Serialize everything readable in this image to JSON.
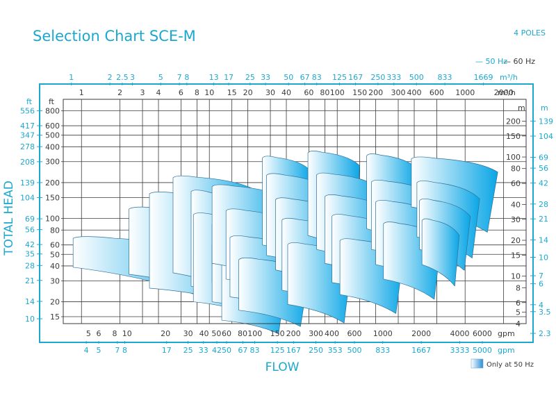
{
  "chart_data": {
    "type": "area",
    "title": "Selection Chart SCE-M",
    "poles": "4 POLES",
    "legend": {
      "hz50": "— 50 Hz",
      "hz60": "— 60 Hz",
      "only50": "Only at 50 Hz"
    },
    "ylabel": "TOTAL HEAD",
    "xlabel": "FLOW",
    "units": {
      "m3h": "m³/h",
      "ft": "ft",
      "m": "m",
      "gpm": "gpm"
    },
    "x_scale": "log",
    "xlim_m3h": [
      0.72,
      3000
    ],
    "y_scale": "log",
    "ylim_ft": [
      13.12,
      1000
    ],
    "grid": true,
    "colors": {
      "accent": "#1ba8cf",
      "curve_light": "#ffffff",
      "curve_dark": "#0aa6e6",
      "grid": "#3a3a3a"
    },
    "x_top_50hz": {
      "labels": [
        "1",
        "2",
        "2.5",
        "3",
        "5",
        "7",
        "8",
        "13",
        "17",
        "25",
        "33",
        "50",
        "67",
        "83",
        "125",
        "167",
        "250",
        "333",
        "500",
        "833",
        "1669"
      ],
      "values": [
        1,
        2,
        2.5,
        3,
        5,
        7,
        8,
        13,
        17,
        25,
        33,
        50,
        67,
        83,
        125,
        167,
        250,
        333,
        500,
        833,
        1669
      ]
    },
    "x_top_60hz": {
      "labels": [
        "1",
        "2",
        "3",
        "4",
        "6",
        "8",
        "10",
        "15",
        "20",
        "30",
        "40",
        "60",
        "80",
        "100",
        "150",
        "200",
        "300",
        "400",
        "600",
        "1000",
        "2000"
      ],
      "values": [
        1,
        2,
        3,
        4,
        6,
        8,
        10,
        15,
        20,
        30,
        40,
        60,
        80,
        100,
        150,
        200,
        300,
        400,
        600,
        1000,
        2000
      ]
    },
    "x_gpm_60hz": {
      "labels": [
        "5",
        "6",
        "8",
        "10",
        "20",
        "30",
        "40",
        "50",
        "60",
        "80",
        "100",
        "150",
        "200",
        "300",
        "400",
        "600",
        "1000",
        "2000",
        "4000",
        "6000"
      ],
      "values": [
        5,
        6,
        8,
        10,
        20,
        30,
        40,
        50,
        60,
        80,
        100,
        150,
        200,
        300,
        400,
        600,
        1000,
        2000,
        4000,
        6000
      ]
    },
    "x_gpm_50hz": {
      "labels": [
        "4",
        "5",
        "7",
        "8",
        "17",
        "25",
        "33",
        "42",
        "50",
        "67",
        "83",
        "125",
        "167",
        "250",
        "353",
        "500",
        "833",
        "1667",
        "3333",
        "5000"
      ],
      "values": [
        4,
        5,
        7,
        8,
        17,
        25,
        33,
        42,
        50,
        67,
        83,
        125,
        167,
        250,
        353,
        500,
        833,
        1667,
        3333,
        5000
      ]
    },
    "y_left_60hz_ft": {
      "labels": [
        "800",
        "600",
        "500",
        "400",
        "300",
        "200",
        "150",
        "100",
        "80",
        "60",
        "50",
        "40",
        "30",
        "20",
        "15"
      ],
      "values": [
        800,
        600,
        500,
        400,
        300,
        200,
        150,
        100,
        80,
        60,
        50,
        40,
        30,
        20,
        15
      ]
    },
    "y_left_50hz_ft": {
      "labels": [
        "556",
        "417",
        "347",
        "278",
        "208",
        "139",
        "104",
        "69",
        "56",
        "42",
        "35",
        "28",
        "21",
        "14",
        "10"
      ],
      "values": [
        556,
        417,
        347,
        278,
        208,
        139,
        104,
        69,
        56,
        42,
        35,
        28,
        21,
        14,
        10
      ]
    },
    "y_right_60hz_m": {
      "labels": [
        "200",
        "150",
        "100",
        "80",
        "60",
        "40",
        "30",
        "20",
        "15",
        "10",
        "8",
        "6",
        "5",
        "4"
      ],
      "values": [
        200,
        150,
        100,
        80,
        60,
        40,
        30,
        20,
        15,
        10,
        8,
        6,
        5,
        4
      ]
    },
    "y_right_50hz_m": {
      "labels": [
        "139",
        "104",
        "69",
        "56",
        "42",
        "28",
        "21",
        "14",
        "10",
        "7",
        "6",
        "4",
        "3.5",
        "2.3"
      ],
      "values": [
        139,
        104,
        69,
        56,
        42,
        28,
        21,
        14,
        10,
        7,
        6,
        4,
        3.5,
        2.3
      ]
    },
    "series": [
      {
        "q": [
          0.86,
          11.9
        ],
        "h_left": [
          39,
          71
        ],
        "h_right": [
          25,
          48
        ],
        "drop": 10
      },
      {
        "q": [
          2.35,
          16
        ],
        "h_left": [
          34,
          125
        ],
        "h_right": [
          25,
          98
        ],
        "drop": 11
      },
      {
        "q": [
          3.4,
          24
        ],
        "h_left": [
          26,
          168
        ],
        "h_right": [
          21,
          118
        ],
        "drop": 10
      },
      {
        "q": [
          5.2,
          24
        ],
        "h_left": [
          35,
          229
        ],
        "h_right": [
          25,
          168
        ],
        "drop": 12
      },
      {
        "q": [
          7.2,
          25
        ],
        "h_left": [
          27,
          175
        ],
        "h_right": [
          22,
          98
        ],
        "drop": 10
      },
      {
        "q": [
          7.5,
          26
        ],
        "h_left": [
          20,
          112
        ],
        "h_right": [
          17,
          78
        ],
        "drop": 9
      },
      {
        "q": [
          10.5,
          25
        ],
        "h_left": [
          29,
          93
        ],
        "h_right": [
          24,
          70
        ],
        "drop": 9
      },
      {
        "q": [
          10.5,
          30
        ],
        "h_left": [
          20,
          62
        ],
        "h_right": [
          17,
          45
        ],
        "drop": 8
      },
      {
        "q": [
          12.5,
          40
        ],
        "h_left": [
          14,
          46
        ],
        "h_right": [
          12,
          32
        ],
        "drop": 8
      },
      {
        "q": [
          10.5,
          42
        ],
        "h_left": [
          42,
          193
        ],
        "h_right": [
          32,
          141
        ],
        "drop": 12
      },
      {
        "q": [
          13.5,
          48
        ],
        "h_left": [
          31,
          121
        ],
        "h_right": [
          25,
          85
        ],
        "drop": 11
      },
      {
        "q": [
          14.5,
          52
        ],
        "h_left": [
          22,
          72
        ],
        "h_right": [
          18,
          52
        ],
        "drop": 10
      },
      {
        "q": [
          17,
          60
        ],
        "h_left": [
          17,
          47
        ],
        "h_right": [
          14,
          34
        ],
        "drop": 9
      },
      {
        "q": [
          26,
          62
        ],
        "h_left": [
          60,
          335
        ],
        "h_right": [
          48,
          251
        ],
        "drop": 11
      },
      {
        "q": [
          28,
          95
        ],
        "h_left": [
          49,
          240
        ],
        "h_right": [
          38,
          162
        ],
        "drop": 10
      },
      {
        "q": [
          33,
          100
        ],
        "h_left": [
          37,
          150
        ],
        "h_right": [
          28,
          109
        ],
        "drop": 10
      },
      {
        "q": [
          37,
          110
        ],
        "h_left": [
          25,
          101
        ],
        "h_right": [
          20,
          73
        ],
        "drop": 10
      },
      {
        "q": [
          41,
          130
        ],
        "h_left": [
          19,
          63
        ],
        "h_right": [
          15,
          45
        ],
        "drop": 9
      },
      {
        "q": [
          59,
          150
        ],
        "h_left": [
          72,
          370
        ],
        "h_right": [
          53,
          276
        ],
        "drop": 11
      },
      {
        "q": [
          69,
          210
        ],
        "h_left": [
          55,
          242
        ],
        "h_right": [
          41,
          180
        ],
        "drop": 11
      },
      {
        "q": [
          80,
          250
        ],
        "h_left": [
          42,
          159
        ],
        "h_right": [
          32,
          116
        ],
        "drop": 11
      },
      {
        "q": [
          91,
          280
        ],
        "h_left": [
          29,
          109
        ],
        "h_right": [
          23,
          78
        ],
        "drop": 10
      },
      {
        "q": [
          105,
          330
        ],
        "h_left": [
          23,
          68
        ],
        "h_right": [
          18,
          50
        ],
        "drop": 9
      },
      {
        "q": [
          170,
          420
        ],
        "h_left": [
          82,
          350
        ],
        "h_right": [
          61,
          262
        ],
        "drop": 11
      },
      {
        "q": [
          185,
          560
        ],
        "h_left": [
          55,
          211
        ],
        "h_right": [
          44,
          155
        ],
        "drop": 11
      },
      {
        "q": [
          200,
          610
        ],
        "h_left": [
          41,
          143
        ],
        "h_right": [
          31,
          103
        ],
        "drop": 11
      },
      {
        "q": [
          230,
          650
        ],
        "h_left": [
          31,
          94
        ],
        "h_right": [
          24,
          66
        ],
        "drop": 10
      },
      {
        "q": [
          380,
          1800
        ],
        "h_left": [
          125,
          330
        ],
        "h_right": [
          90,
          245
        ],
        "drop": 12
      },
      {
        "q": [
          420,
          1300
        ],
        "h_left": [
          70,
          208
        ],
        "h_right": [
          54,
          146
        ],
        "drop": 11
      },
      {
        "q": [
          440,
          1100
        ],
        "h_left": [
          55,
          147
        ],
        "h_right": [
          42,
          104
        ],
        "drop": 10
      },
      {
        "q": [
          460,
          900
        ],
        "h_left": [
          41,
          100
        ],
        "h_right": [
          31,
          72
        ],
        "drop": 10
      }
    ]
  }
}
